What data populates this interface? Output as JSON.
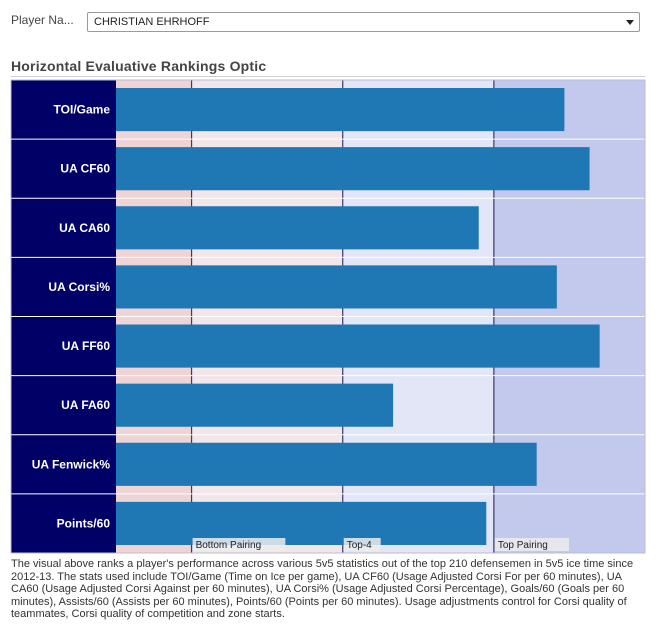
{
  "player_filter": {
    "label": "Player Na...",
    "selected": "CHRISTIAN EHRHOFF"
  },
  "chart_data": {
    "type": "bar",
    "orientation": "horizontal",
    "title": "Horizontal Evaluative Rankings Optic",
    "categories": [
      "TOI/Game",
      "UA CF60",
      "UA CA60",
      "UA Corsi%",
      "UA FF60",
      "UA FA60",
      "UA Fenwick%",
      "Points/60"
    ],
    "values": [
      178,
      188,
      144,
      175,
      192,
      110,
      167,
      147
    ],
    "xlim": [
      0,
      210
    ],
    "unit_note": "rank-based score out of 210 defensemen (higher = better)",
    "reference_lines": [
      {
        "label": "Bottom Pairing",
        "value": 30
      },
      {
        "label": "Top-4",
        "value": 90
      },
      {
        "label": "Top Pairing",
        "value": 150
      }
    ],
    "bands": [
      {
        "from": 0,
        "to": 30,
        "color": "#efd4d6"
      },
      {
        "from": 30,
        "to": 90,
        "color": "#f3e6e9"
      },
      {
        "from": 90,
        "to": 150,
        "color": "#e2e6f6"
      },
      {
        "from": 150,
        "to": 210,
        "color": "#c3c9ec"
      }
    ],
    "bar_color": "#1f77b4",
    "label_bg_color": "#000066",
    "grid": false
  },
  "footnote": "The visual above ranks a player's performance across various 5v5 statistics out of the top 210 defensemen in 5v5 ice time since 2012-13. The stats used include TOI/Game (Time on Ice per game), UA CF60 (Usage Adjusted Corsi For per 60 minutes), UA CA60 (Usage Adjusted Corsi Against per 60 minutes), UA Corsi% (Usage Adjusted Corsi Percentage), Goals/60 (Goals per 60 minutes), Assists/60 (Assists per 60 minutes), Points/60 (Points per 60 minutes). Usage adjustments control for Corsi quality of teammates, Corsi quality of competition and zone starts."
}
